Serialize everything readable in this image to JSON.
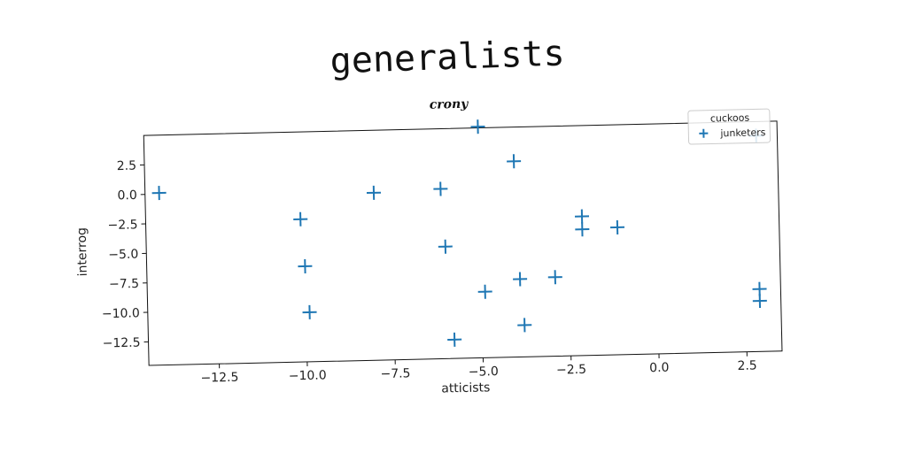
{
  "figure": {
    "suptitle": "generalists"
  },
  "chart_data": {
    "type": "scatter",
    "title": "crony",
    "xlabel": "atticists",
    "ylabel": "interrog",
    "xlim": [
      -14.5,
      3.5
    ],
    "ylim": [
      -14.5,
      5
    ],
    "xticks": [
      -12.5,
      -10.0,
      -7.5,
      -5.0,
      -2.5,
      0.0,
      2.5
    ],
    "xtick_labels": [
      "−12.5",
      "−10.0",
      "−7.5",
      "−5.0",
      "−2.5",
      "0.0",
      "2.5"
    ],
    "yticks": [
      2.5,
      0.0,
      -2.5,
      -5.0,
      -7.5,
      -10.0,
      -12.5
    ],
    "ytick_labels": [
      "2.5",
      "0.0",
      "−2.5",
      "−5.0",
      "−7.5",
      "−10.0",
      "−12.5"
    ],
    "grid": false,
    "legend": {
      "title": "cuckoos",
      "placement": "top-right"
    },
    "series": [
      {
        "name": "junketers",
        "color": "#1f77b4",
        "marker": "plus",
        "points": [
          [
            -14.1,
            0.1
          ],
          [
            -10.1,
            -2.4
          ],
          [
            -10.0,
            -6.4
          ],
          [
            -9.9,
            -10.3
          ],
          [
            -8.0,
            -0.3
          ],
          [
            -6.1,
            -0.1
          ],
          [
            -6.0,
            -5.0
          ],
          [
            -5.8,
            -12.9
          ],
          [
            -5.0,
            5.1
          ],
          [
            -4.9,
            -8.9
          ],
          [
            -4.0,
            2.1
          ],
          [
            -3.9,
            -7.9
          ],
          [
            -3.8,
            -11.8
          ],
          [
            -2.9,
            -7.8
          ],
          [
            -2.1,
            -2.7
          ],
          [
            -2.1,
            -3.8
          ],
          [
            -1.1,
            -3.7
          ],
          [
            2.9,
            -9.2
          ],
          [
            2.9,
            -10.2
          ],
          [
            2.9,
            3.8
          ]
        ]
      }
    ]
  }
}
